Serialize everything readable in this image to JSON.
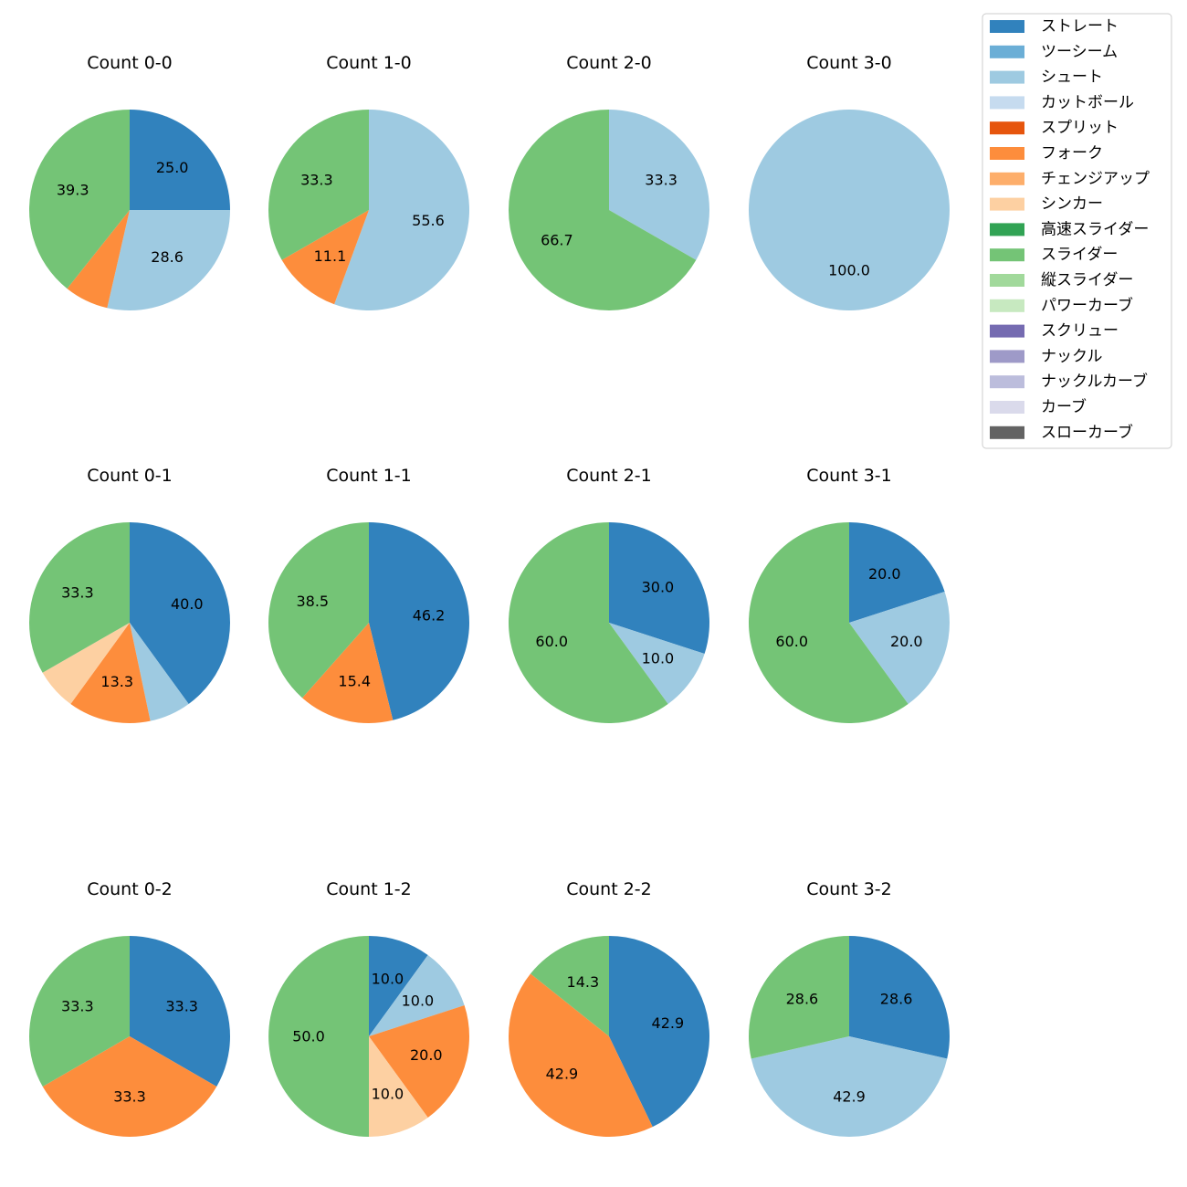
{
  "chart_data": {
    "type": "pie",
    "legend_placement": "top-right",
    "categories": [
      "ストレート",
      "ツーシーム",
      "シュート",
      "カットボール",
      "スプリット",
      "フォーク",
      "チェンジアップ",
      "シンカー",
      "高速スライダー",
      "スライダー",
      "縦スライダー",
      "パワーカーブ",
      "スクリュー",
      "ナックル",
      "ナックルカーブ",
      "カーブ",
      "スローカーブ"
    ],
    "colors": [
      "#3182bd",
      "#6baed6",
      "#9ecae1",
      "#c6dbef",
      "#e6550d",
      "#fd8d3c",
      "#fdae6b",
      "#fdd0a2",
      "#31a354",
      "#74c476",
      "#a1d99b",
      "#c7e9c0",
      "#756bb1",
      "#9e9ac8",
      "#bcbddc",
      "#dadaeb",
      "#636363"
    ],
    "charts": [
      {
        "title": "Count 0-0",
        "slices": [
          {
            "category": "ストレート",
            "value": 25.0
          },
          {
            "category": "シュート",
            "value": 28.6
          },
          {
            "category": "フォーク",
            "value": 7.1
          },
          {
            "category": "スライダー",
            "value": 39.3
          }
        ],
        "labels": [
          "25.0",
          "28.6",
          "",
          "39.3"
        ]
      },
      {
        "title": "Count 1-0",
        "slices": [
          {
            "category": "シュート",
            "value": 55.6
          },
          {
            "category": "フォーク",
            "value": 11.1
          },
          {
            "category": "スライダー",
            "value": 33.3
          }
        ],
        "labels": [
          "55.6",
          "11.1",
          "33.3"
        ]
      },
      {
        "title": "Count 2-0",
        "slices": [
          {
            "category": "シュート",
            "value": 33.3
          },
          {
            "category": "スライダー",
            "value": 66.7
          }
        ],
        "labels": [
          "33.3",
          "66.7"
        ]
      },
      {
        "title": "Count 3-0",
        "slices": [
          {
            "category": "シュート",
            "value": 100.0
          }
        ],
        "labels": [
          "100.0"
        ]
      },
      {
        "title": "Count 0-1",
        "slices": [
          {
            "category": "ストレート",
            "value": 40.0
          },
          {
            "category": "シュート",
            "value": 6.7
          },
          {
            "category": "フォーク",
            "value": 13.3
          },
          {
            "category": "シンカー",
            "value": 6.7
          },
          {
            "category": "スライダー",
            "value": 33.3
          }
        ],
        "labels": [
          "40.0",
          "",
          "13.3",
          "",
          "33.3"
        ]
      },
      {
        "title": "Count 1-1",
        "slices": [
          {
            "category": "ストレート",
            "value": 46.2
          },
          {
            "category": "フォーク",
            "value": 15.4
          },
          {
            "category": "スライダー",
            "value": 38.5
          }
        ],
        "labels": [
          "46.2",
          "15.4",
          "38.5"
        ]
      },
      {
        "title": "Count 2-1",
        "slices": [
          {
            "category": "ストレート",
            "value": 30.0
          },
          {
            "category": "シュート",
            "value": 10.0
          },
          {
            "category": "スライダー",
            "value": 60.0
          }
        ],
        "labels": [
          "30.0",
          "10.0",
          "60.0"
        ]
      },
      {
        "title": "Count 3-1",
        "slices": [
          {
            "category": "ストレート",
            "value": 20.0
          },
          {
            "category": "シュート",
            "value": 20.0
          },
          {
            "category": "スライダー",
            "value": 60.0
          }
        ],
        "labels": [
          "20.0",
          "20.0",
          "60.0"
        ]
      },
      {
        "title": "Count 0-2",
        "slices": [
          {
            "category": "ストレート",
            "value": 33.3
          },
          {
            "category": "フォーク",
            "value": 33.3
          },
          {
            "category": "スライダー",
            "value": 33.3
          }
        ],
        "labels": [
          "33.3",
          "33.3",
          "33.3"
        ]
      },
      {
        "title": "Count 1-2",
        "slices": [
          {
            "category": "ストレート",
            "value": 10.0
          },
          {
            "category": "シュート",
            "value": 10.0
          },
          {
            "category": "フォーク",
            "value": 20.0
          },
          {
            "category": "シンカー",
            "value": 10.0
          },
          {
            "category": "スライダー",
            "value": 50.0
          }
        ],
        "labels": [
          "10.0",
          "10.0",
          "20.0",
          "10.0",
          "50.0"
        ]
      },
      {
        "title": "Count 2-2",
        "slices": [
          {
            "category": "ストレート",
            "value": 42.9
          },
          {
            "category": "フォーク",
            "value": 42.9
          },
          {
            "category": "スライダー",
            "value": 14.3
          }
        ],
        "labels": [
          "42.9",
          "42.9",
          "14.3"
        ]
      },
      {
        "title": "Count 3-2",
        "slices": [
          {
            "category": "ストレート",
            "value": 28.6
          },
          {
            "category": "シュート",
            "value": 42.9
          },
          {
            "category": "スライダー",
            "value": 28.6
          }
        ],
        "labels": [
          "28.6",
          "42.9",
          "28.6"
        ]
      }
    ]
  }
}
